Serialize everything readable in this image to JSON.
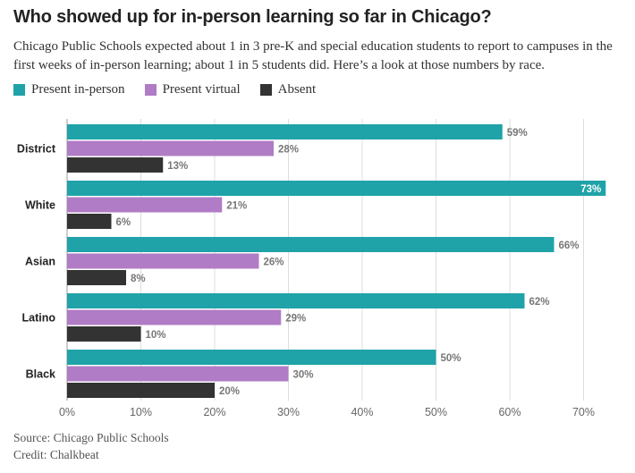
{
  "title": "Who showed up for in-person learning so far in Chicago?",
  "subtitle": "Chicago Public Schools expected about 1 in 3 pre-K and special education students to report to campuses in the first weeks of in-person learning; about 1 in 5 students did. Here’s a look at those numbers by race.",
  "footer": {
    "source": "Source: Chicago Public Schools",
    "credit": "Credit: Chalkbeat"
  },
  "chart_data": {
    "type": "bar",
    "orientation": "horizontal",
    "categories": [
      "District",
      "White",
      "Asian",
      "Latino",
      "Black"
    ],
    "series": [
      {
        "name": "Present in-person",
        "color": "#1fa3a8",
        "values": [
          59,
          73,
          66,
          62,
          50
        ],
        "labels": [
          "59%",
          "73%",
          "66%",
          "62%",
          "50%"
        ]
      },
      {
        "name": "Present virtual",
        "color": "#b07cc6",
        "values": [
          28,
          21,
          26,
          29,
          30
        ],
        "labels": [
          "28%",
          "21%",
          "26%",
          "29%",
          "30%"
        ]
      },
      {
        "name": "Absent",
        "color": "#333333",
        "values": [
          13,
          6,
          8,
          10,
          20
        ],
        "labels": [
          "13%",
          "6%",
          "8%",
          "10%",
          "20%"
        ]
      }
    ],
    "xlim": [
      0,
      70
    ],
    "xticks": [
      "0%",
      "10%",
      "20%",
      "30%",
      "40%",
      "50%",
      "60%",
      "70%"
    ],
    "grid": true,
    "legend_position": "top-left"
  }
}
